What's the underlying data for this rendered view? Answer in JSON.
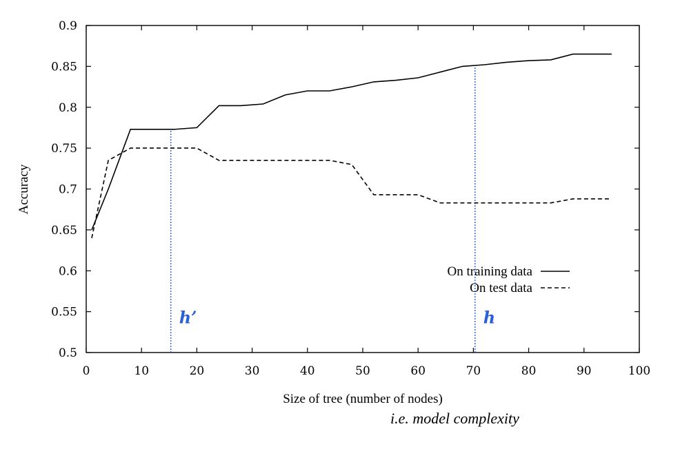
{
  "chart_data": {
    "type": "line",
    "xlabel": "Size of tree (number of nodes)",
    "ylabel": "Accuracy",
    "xlim": [
      0,
      100
    ],
    "ylim": [
      0.5,
      0.9
    ],
    "xticks": [
      0,
      10,
      20,
      30,
      40,
      50,
      60,
      70,
      80,
      90,
      100
    ],
    "yticks": [
      0.5,
      0.55,
      0.6,
      0.65,
      0.7,
      0.75,
      0.8,
      0.85,
      0.9
    ],
    "grid": false,
    "legend_position": "bottom-right",
    "series": [
      {
        "name": "On training data",
        "style": "solid",
        "color": "#000000",
        "points": [
          [
            1,
            0.65
          ],
          [
            4,
            0.7
          ],
          [
            8,
            0.773
          ],
          [
            12,
            0.773
          ],
          [
            16,
            0.773
          ],
          [
            20,
            0.775
          ],
          [
            24,
            0.802
          ],
          [
            28,
            0.802
          ],
          [
            32,
            0.804
          ],
          [
            36,
            0.815
          ],
          [
            40,
            0.82
          ],
          [
            44,
            0.82
          ],
          [
            48,
            0.825
          ],
          [
            52,
            0.831
          ],
          [
            56,
            0.833
          ],
          [
            60,
            0.836
          ],
          [
            64,
            0.843
          ],
          [
            68,
            0.85
          ],
          [
            72,
            0.852
          ],
          [
            76,
            0.855
          ],
          [
            80,
            0.857
          ],
          [
            84,
            0.858
          ],
          [
            88,
            0.865
          ],
          [
            95,
            0.865
          ]
        ]
      },
      {
        "name": "On test data",
        "style": "dashed",
        "color": "#000000",
        "points": [
          [
            1,
            0.64
          ],
          [
            4,
            0.735
          ],
          [
            8,
            0.75
          ],
          [
            12,
            0.75
          ],
          [
            16,
            0.75
          ],
          [
            20,
            0.75
          ],
          [
            24,
            0.735
          ],
          [
            28,
            0.735
          ],
          [
            32,
            0.735
          ],
          [
            36,
            0.735
          ],
          [
            40,
            0.735
          ],
          [
            44,
            0.735
          ],
          [
            48,
            0.73
          ],
          [
            52,
            0.693
          ],
          [
            56,
            0.693
          ],
          [
            60,
            0.693
          ],
          [
            64,
            0.683
          ],
          [
            68,
            0.683
          ],
          [
            72,
            0.683
          ],
          [
            76,
            0.683
          ],
          [
            80,
            0.683
          ],
          [
            84,
            0.683
          ],
          [
            88,
            0.688
          ],
          [
            95,
            0.688
          ]
        ]
      }
    ],
    "annotations": [
      {
        "label": "h’",
        "x": 15.3,
        "color": "#2b5fd9"
      },
      {
        "label": "h",
        "x": 70.3,
        "color": "#2b5fd9"
      }
    ],
    "note": "i.e. model complexity"
  }
}
